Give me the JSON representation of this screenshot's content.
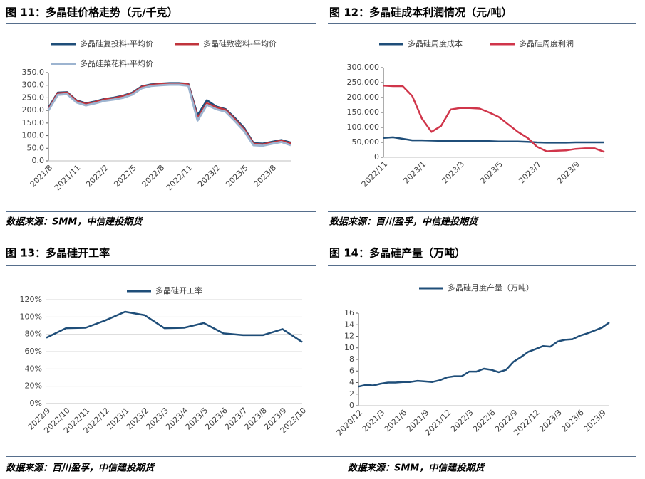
{
  "chart_data": [
    {
      "type": "line",
      "title": "图 11：多晶硅价格走势（元/千克）",
      "source": "数据来源：SMM，中信建投期货",
      "categories": [
        "2021/8",
        null,
        null,
        "2021/11",
        null,
        null,
        "2022/2",
        null,
        null,
        "2022/5",
        null,
        null,
        "2022/8",
        null,
        null,
        "2022/11",
        null,
        null,
        "2023/2",
        null,
        null,
        "2023/5",
        null,
        null,
        "2023/8",
        null,
        null
      ],
      "series": [
        {
          "name": "多晶硅复投料-平均价",
          "color": "#1f4e79",
          "values": [
            210,
            270,
            272,
            240,
            228,
            235,
            245,
            250,
            258,
            270,
            295,
            303,
            306,
            308,
            308,
            305,
            180,
            240,
            215,
            205,
            170,
            130,
            70,
            68,
            75,
            82,
            72
          ]
        },
        {
          "name": "多晶硅致密料-平均价",
          "color": "#c0343c",
          "values": [
            205,
            268,
            270,
            238,
            225,
            233,
            243,
            248,
            256,
            268,
            293,
            301,
            304,
            306,
            306,
            303,
            170,
            228,
            212,
            202,
            165,
            125,
            67,
            65,
            72,
            80,
            68
          ]
        },
        {
          "name": "多晶硅菜花料-平均价",
          "color": "#9db4d0",
          "values": [
            200,
            262,
            265,
            232,
            220,
            228,
            238,
            243,
            250,
            263,
            288,
            297,
            300,
            302,
            302,
            298,
            160,
            222,
            205,
            195,
            158,
            118,
            62,
            60,
            68,
            75,
            62
          ]
        }
      ],
      "ylim": [
        0,
        350
      ],
      "yticks": [
        {
          "value": 0,
          "label": "0.0"
        },
        {
          "value": 50,
          "label": "50.0"
        },
        {
          "value": 100,
          "label": "100.0"
        },
        {
          "value": 150,
          "label": "150.0"
        },
        {
          "value": 200,
          "label": "200.0"
        },
        {
          "value": 250,
          "label": "250.0"
        },
        {
          "value": 300,
          "label": "300.0"
        },
        {
          "value": 350,
          "label": "350.0"
        }
      ],
      "grid": false
    },
    {
      "type": "line",
      "title": "图 12：多晶硅成本利润情况（元/吨）",
      "source": "数据来源：百川盈孚，中信建投期货",
      "categories": [
        "2022/11",
        null,
        null,
        null,
        "2023/1",
        null,
        null,
        null,
        "2023/3",
        null,
        null,
        null,
        "2023/5",
        null,
        null,
        null,
        "2023/7",
        null,
        null,
        null,
        "2023/9",
        null,
        null,
        null
      ],
      "series": [
        {
          "name": "多晶硅周度成本",
          "color": "#1f4e79",
          "values": [
            65000,
            67000,
            62000,
            57000,
            57000,
            56000,
            55000,
            55000,
            55000,
            55000,
            55000,
            54000,
            53000,
            53000,
            53000,
            52000,
            50000,
            49000,
            49000,
            49000,
            50000,
            50000,
            50000,
            50000
          ]
        },
        {
          "name": "多晶硅周度利润",
          "color": "#d0354a",
          "values": [
            240000,
            238000,
            238000,
            205000,
            130000,
            85000,
            105000,
            160000,
            165000,
            165000,
            163000,
            150000,
            135000,
            110000,
            85000,
            65000,
            35000,
            20000,
            22000,
            23000,
            28000,
            30000,
            30000,
            18000
          ]
        }
      ],
      "ylim": [
        0,
        300000
      ],
      "yticks": [
        0,
        {
          "value": 50000,
          "label": "50,000"
        },
        {
          "value": 100000,
          "label": "100,000"
        },
        {
          "value": 150000,
          "label": "150,000"
        },
        {
          "value": 200000,
          "label": "200,000"
        },
        {
          "value": 250000,
          "label": "250,000"
        },
        {
          "value": 300000,
          "label": "300,000"
        }
      ],
      "grid": false
    },
    {
      "type": "line",
      "title": "图 13：多晶硅开工率",
      "source": "数据来源：百川盈孚，中信建投期货",
      "categories": [
        "2022/9",
        "2022/10",
        "2022/11",
        "2022/12",
        "2023/1",
        "2023/2",
        "2023/3",
        "2023/4",
        "2023/5",
        "2023/6",
        "2023/7",
        "2023/8",
        "2023/9",
        "2023/10"
      ],
      "series": [
        {
          "name": "多晶硅开工率",
          "color": "#1f4e79",
          "values": [
            76,
            87,
            87.5,
            96,
            106,
            102,
            87,
            87.5,
            93,
            81,
            79,
            79,
            86,
            71
          ]
        }
      ],
      "ylim": [
        0,
        120
      ],
      "yticks": [
        {
          "value": 0,
          "label": "0%"
        },
        {
          "value": 20,
          "label": "20%"
        },
        {
          "value": 40,
          "label": "40%"
        },
        {
          "value": 60,
          "label": "60%"
        },
        {
          "value": 80,
          "label": "80%"
        },
        {
          "value": 100,
          "label": "100%"
        },
        {
          "value": 120,
          "label": "120%"
        }
      ],
      "grid": true
    },
    {
      "type": "line",
      "title": "图 14：多晶硅产量（万吨）",
      "source": "数据来源：SMM，中信建投期货",
      "categories": [
        "2020/12",
        null,
        null,
        "2021/3",
        null,
        null,
        "2021/6",
        null,
        null,
        "2021/9",
        null,
        null,
        "2021/12",
        null,
        null,
        "2022/3",
        null,
        null,
        "2022/6",
        null,
        null,
        "2022/9",
        null,
        null,
        "2022/12",
        null,
        null,
        "2023/3",
        null,
        null,
        "2023/6",
        null,
        null,
        "2023/9",
        null
      ],
      "series": [
        {
          "name": "多晶硅月度产量（万吨）",
          "color": "#1f4e79",
          "values": [
            3.3,
            3.6,
            3.5,
            3.8,
            4.0,
            4.0,
            4.1,
            4.1,
            4.3,
            4.2,
            4.1,
            4.4,
            4.9,
            5.1,
            5.1,
            5.9,
            5.9,
            6.4,
            6.2,
            5.8,
            6.2,
            7.6,
            8.4,
            9.3,
            9.8,
            10.3,
            10.2,
            11.1,
            11.4,
            11.5,
            12.1,
            12.5,
            13.0,
            13.5,
            14.4
          ]
        }
      ],
      "ylim": [
        0,
        16
      ],
      "yticks": [
        0,
        2,
        4,
        6,
        8,
        10,
        12,
        14,
        16
      ],
      "grid": false
    }
  ]
}
